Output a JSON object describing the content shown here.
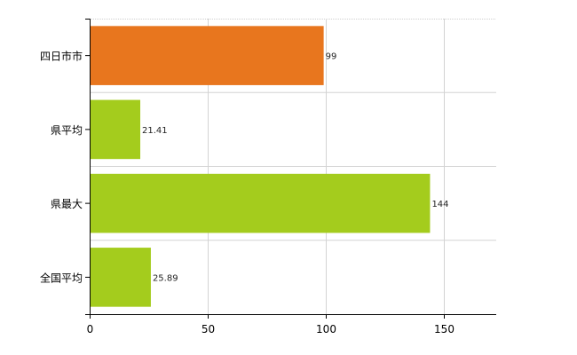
{
  "chart_data": {
    "type": "bar",
    "orientation": "horizontal",
    "categories": [
      "四日市市",
      "県平均",
      "県最大",
      "全国平均"
    ],
    "values": [
      99,
      21.41,
      144,
      25.89
    ],
    "value_labels": [
      "99",
      "21.41",
      "144",
      "25.89"
    ],
    "bar_colors": [
      "#e8761e",
      "#a4cc1d",
      "#a4cc1d",
      "#a4cc1d"
    ],
    "xlim": [
      0,
      172
    ],
    "xticks": [
      0,
      50,
      100,
      150
    ],
    "xtick_labels": [
      "0",
      "50",
      "100",
      "150"
    ],
    "grid": true,
    "title": "",
    "xlabel": "",
    "ylabel": ""
  }
}
